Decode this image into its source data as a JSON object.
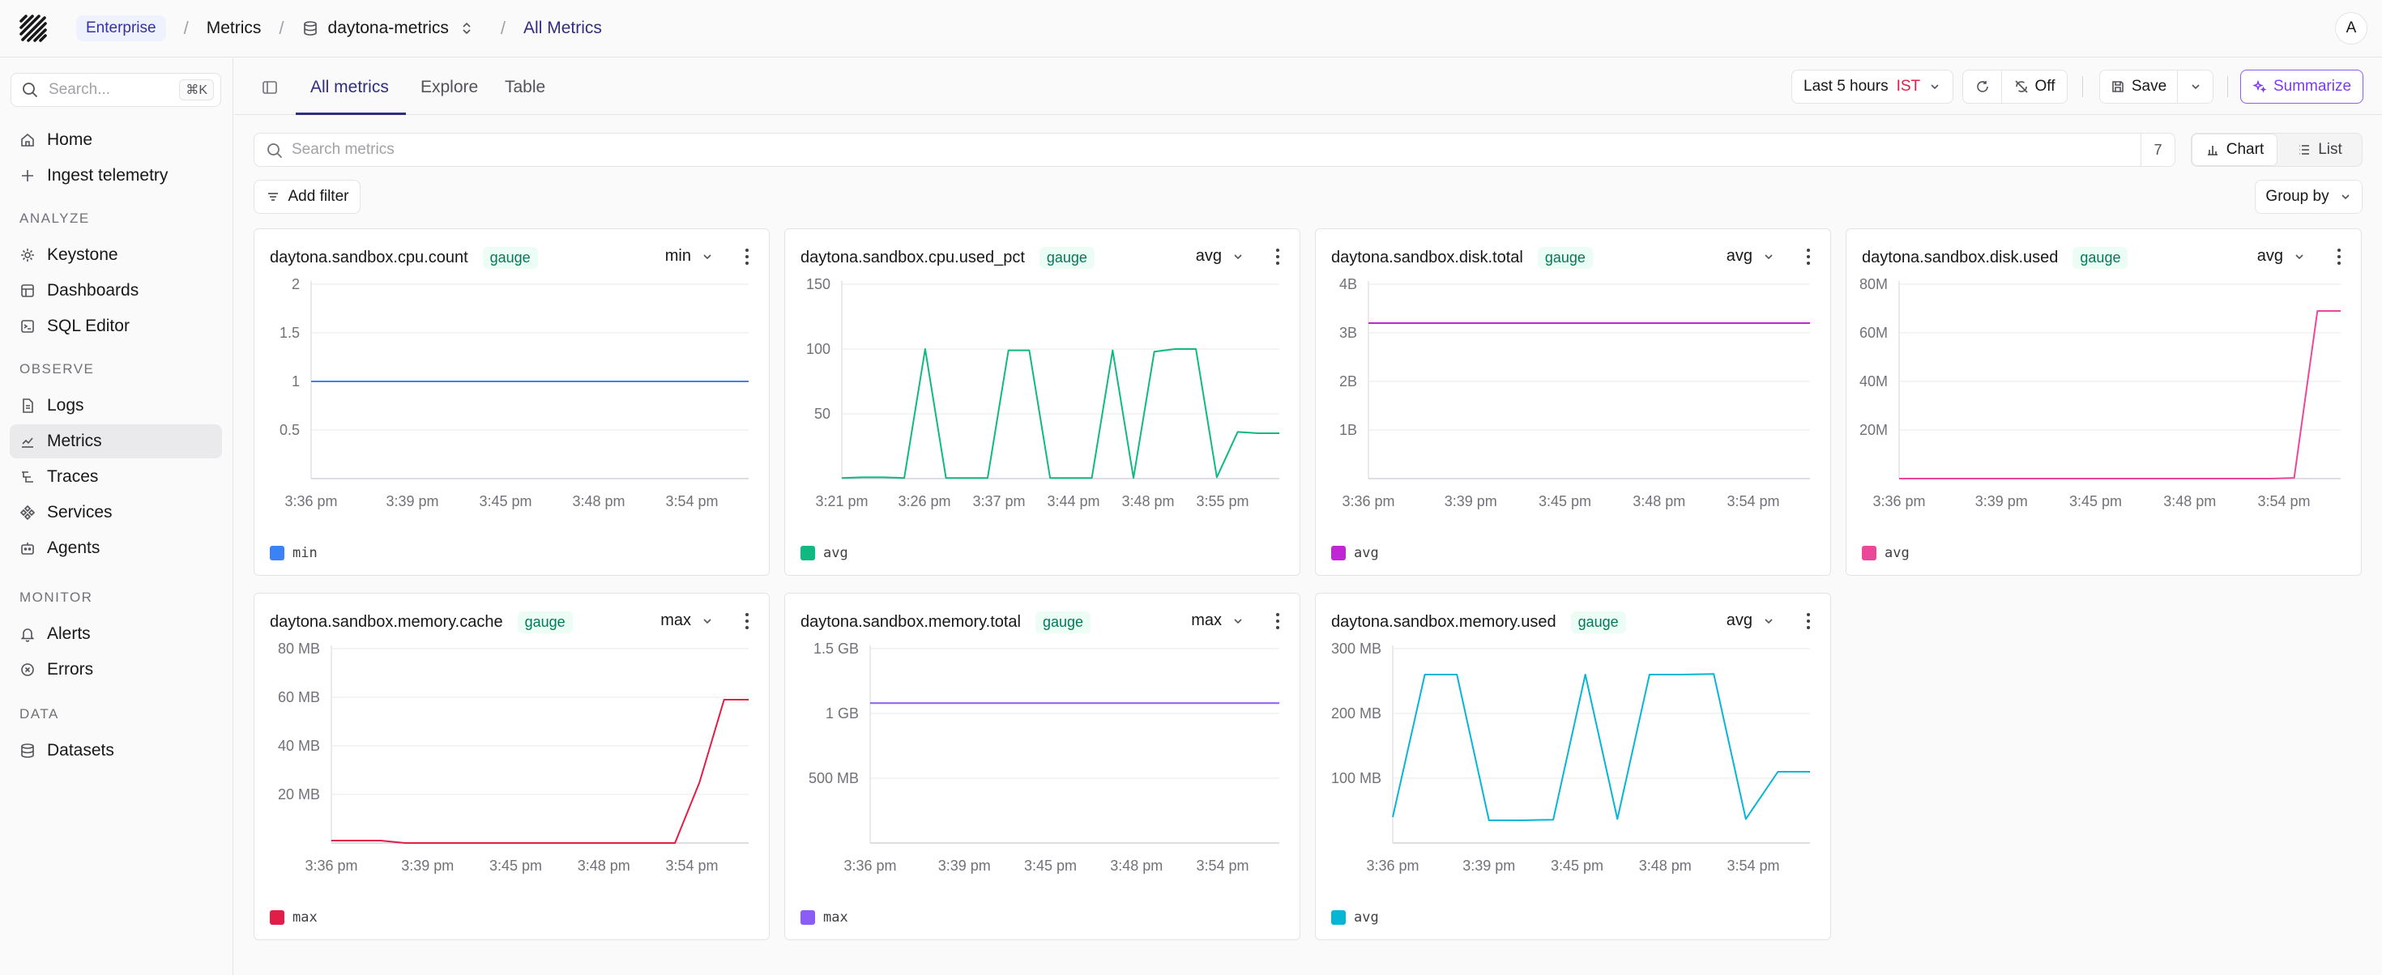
{
  "topbar": {
    "badge": "Enterprise",
    "crumbs": [
      "Metrics",
      "daytona-metrics",
      "All Metrics"
    ],
    "avatar": "A"
  },
  "sidebar": {
    "search_placeholder": "Search...",
    "search_kbd": "⌘K",
    "top_items": [
      {
        "label": "Home",
        "icon": "home-icon"
      },
      {
        "label": "Ingest telemetry",
        "icon": "plus-icon"
      }
    ],
    "sections": [
      {
        "label": "ANALYZE",
        "items": [
          {
            "label": "Keystone",
            "icon": "sparkle-icon"
          },
          {
            "label": "Dashboards",
            "icon": "dashboard-icon"
          },
          {
            "label": "SQL Editor",
            "icon": "terminal-icon"
          }
        ]
      },
      {
        "label": "OBSERVE",
        "items": [
          {
            "label": "Logs",
            "icon": "file-icon"
          },
          {
            "label": "Metrics",
            "icon": "chart-line-icon"
          },
          {
            "label": "Traces",
            "icon": "traces-icon"
          },
          {
            "label": "Services",
            "icon": "services-icon"
          },
          {
            "label": "Agents",
            "icon": "bot-icon"
          }
        ]
      },
      {
        "label": "MONITOR",
        "items": [
          {
            "label": "Alerts",
            "icon": "bell-icon"
          },
          {
            "label": "Errors",
            "icon": "error-icon"
          }
        ]
      },
      {
        "label": "DATA",
        "items": [
          {
            "label": "Datasets",
            "icon": "database-icon"
          }
        ]
      }
    ],
    "active": "Metrics"
  },
  "tabs": [
    "All metrics",
    "Explore",
    "Table"
  ],
  "toolbar": {
    "time_range": "Last 5 hours",
    "timezone": "IST",
    "refresh_state": "Off",
    "save": "Save",
    "summarize": "Summarize"
  },
  "search": {
    "placeholder": "Search metrics",
    "count": "7"
  },
  "view": {
    "chart": "Chart",
    "list": "List"
  },
  "add_filter": "Add filter",
  "group_by": "Group by",
  "chart_data": [
    {
      "type": "line",
      "title": "daytona.sandbox.cpu.count",
      "badge": "gauge",
      "agg": "min",
      "color": "#3b82f6",
      "y_ticks": [
        "2",
        "1.5",
        "1",
        "0.5"
      ],
      "y_tick_values": [
        2,
        1.5,
        1,
        0.5
      ],
      "ylim": [
        0,
        2
      ],
      "x_ticks": [
        "3:36 pm",
        "3:39 pm",
        "3:45 pm",
        "3:48 pm",
        "3:54 pm"
      ],
      "series": [
        {
          "name": "min",
          "values": [
            1,
            1
          ]
        }
      ]
    },
    {
      "type": "line",
      "title": "daytona.sandbox.cpu.used_pct",
      "badge": "gauge",
      "agg": "avg",
      "color": "#10b981",
      "y_ticks": [
        "150",
        "100",
        "50"
      ],
      "y_tick_values": [
        150,
        100,
        50
      ],
      "ylim": [
        0,
        150
      ],
      "x_ticks": [
        "3:21 pm",
        "3:26 pm",
        "3:37 pm",
        "3:44 pm",
        "3:48 pm",
        "3:55 pm"
      ],
      "series": [
        {
          "name": "avg",
          "values": [
            0.5,
            1,
            1,
            0.5,
            100,
            0.5,
            0.5,
            0.5,
            99,
            99,
            0.5,
            0.5,
            0.5,
            99,
            0.5,
            98,
            100,
            100,
            1,
            36,
            35,
            35
          ]
        }
      ]
    },
    {
      "type": "line",
      "title": "daytona.sandbox.disk.total",
      "badge": "gauge",
      "agg": "avg",
      "color": "#c026d3",
      "y_ticks": [
        "4B",
        "3B",
        "2B",
        "1B"
      ],
      "y_tick_values": [
        4,
        3,
        2,
        1
      ],
      "ylim": [
        0,
        4
      ],
      "x_ticks": [
        "3:36 pm",
        "3:39 pm",
        "3:45 pm",
        "3:48 pm",
        "3:54 pm"
      ],
      "series": [
        {
          "name": "avg",
          "values": [
            3.2,
            3.2
          ]
        }
      ]
    },
    {
      "type": "line",
      "title": "daytona.sandbox.disk.used",
      "badge": "gauge",
      "agg": "avg",
      "color": "#ec4899",
      "y_ticks": [
        "80M",
        "60M",
        "40M",
        "20M"
      ],
      "y_tick_values": [
        80,
        60,
        40,
        20
      ],
      "ylim": [
        0,
        80
      ],
      "x_ticks": [
        "3:36 pm",
        "3:39 pm",
        "3:45 pm",
        "3:48 pm",
        "3:54 pm"
      ],
      "series": [
        {
          "name": "avg",
          "values": [
            0,
            0,
            0,
            0,
            0,
            0,
            0,
            0,
            0,
            0,
            0,
            0,
            0,
            0,
            0,
            0,
            0,
            0.3,
            69,
            69
          ]
        }
      ]
    },
    {
      "type": "line",
      "title": "daytona.sandbox.memory.cache",
      "badge": "gauge",
      "agg": "max",
      "color": "#e11d48",
      "y_ticks": [
        "80 MB",
        "60 MB",
        "40 MB",
        "20 MB"
      ],
      "y_tick_values": [
        80,
        60,
        40,
        20
      ],
      "ylim": [
        0,
        80
      ],
      "x_ticks": [
        "3:36 pm",
        "3:39 pm",
        "3:45 pm",
        "3:48 pm",
        "3:54 pm"
      ],
      "series": [
        {
          "name": "max",
          "values": [
            1,
            1,
            1,
            0,
            0,
            0,
            0,
            0,
            0,
            0,
            0,
            0,
            0,
            0,
            0,
            25,
            59,
            59
          ]
        }
      ]
    },
    {
      "type": "line",
      "title": "daytona.sandbox.memory.total",
      "badge": "gauge",
      "agg": "max",
      "color": "#8b5cf6",
      "y_ticks": [
        "1.5 GB",
        "1 GB",
        "500 MB"
      ],
      "y_tick_values": [
        1.5,
        1,
        0.5
      ],
      "ylim": [
        0,
        1.5
      ],
      "x_ticks": [
        "3:36 pm",
        "3:39 pm",
        "3:45 pm",
        "3:48 pm",
        "3:54 pm"
      ],
      "series": [
        {
          "name": "max",
          "values": [
            1.08,
            1.08
          ]
        }
      ]
    },
    {
      "type": "line",
      "title": "daytona.sandbox.memory.used",
      "badge": "gauge",
      "agg": "avg",
      "color": "#06b6d4",
      "y_ticks": [
        "300 MB",
        "200 MB",
        "100 MB"
      ],
      "y_tick_values": [
        300,
        200,
        100
      ],
      "ylim": [
        0,
        300
      ],
      "x_ticks": [
        "3:36 pm",
        "3:39 pm",
        "3:45 pm",
        "3:48 pm",
        "3:54 pm"
      ],
      "series": [
        {
          "name": "avg",
          "values": [
            40,
            260,
            260,
            35,
            35,
            36,
            260,
            37,
            260,
            260,
            261,
            37,
            110,
            110
          ]
        }
      ]
    }
  ]
}
